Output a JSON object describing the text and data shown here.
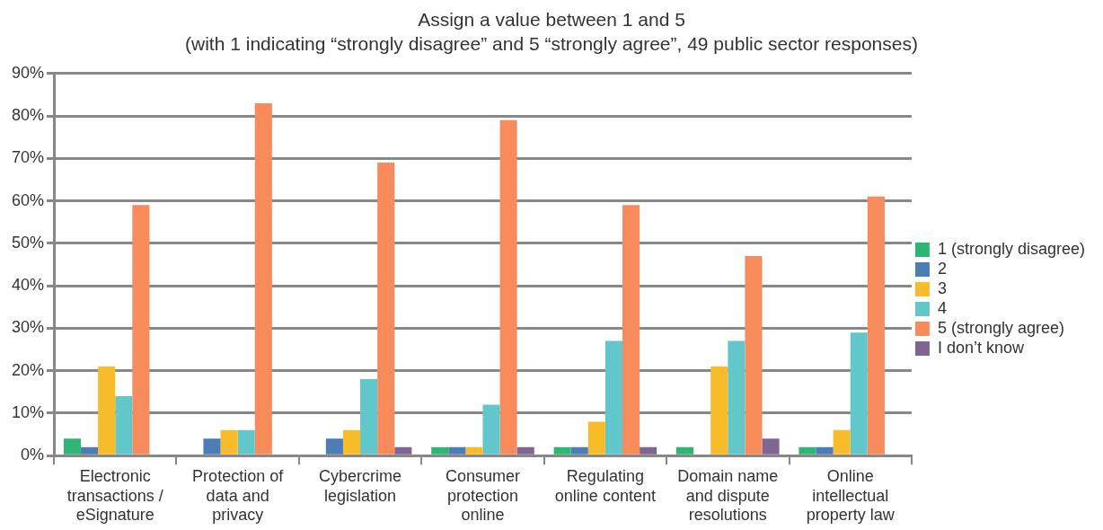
{
  "chart_data": {
    "type": "bar",
    "title": "Assign a value between 1 and 5",
    "subtitle": "(with 1 indicating “strongly disagree” and 5 “strongly agree”, 49 public sector responses)",
    "categories": [
      "Electronic transactions / eSignature",
      "Protection of data and privacy",
      "Cybercrime legislation",
      "Consumer protection online",
      "Regulating online content",
      "Domain name and dispute resolutions",
      "Online intellectual property law"
    ],
    "series": [
      {
        "name": "1 (strongly disagree)",
        "color": "#2eb774",
        "values": [
          4,
          0,
          0,
          2,
          2,
          2,
          2
        ]
      },
      {
        "name": "2",
        "color": "#4c7db5",
        "values": [
          2,
          4,
          4,
          2,
          2,
          0,
          2
        ]
      },
      {
        "name": "3",
        "color": "#f8bc2a",
        "values": [
          21,
          6,
          6,
          2,
          8,
          21,
          6
        ]
      },
      {
        "name": "4",
        "color": "#62c7ca",
        "values": [
          14,
          6,
          18,
          12,
          27,
          27,
          29
        ]
      },
      {
        "name": "5 (strongly agree)",
        "color": "#f78b5c",
        "values": [
          59,
          83,
          69,
          79,
          59,
          47,
          61
        ]
      },
      {
        "name": "I don’t know",
        "color": "#7f6592",
        "values": [
          0,
          0,
          2,
          2,
          2,
          4,
          0
        ]
      }
    ],
    "ylim": [
      0,
      90
    ],
    "yticks": [
      {
        "value": 0,
        "label": "0%"
      },
      {
        "value": 10,
        "label": "10%"
      },
      {
        "value": 20,
        "label": "20%"
      },
      {
        "value": 30,
        "label": "30%"
      },
      {
        "value": 40,
        "label": "40%"
      },
      {
        "value": 50,
        "label": "50%"
      },
      {
        "value": 60,
        "label": "60%"
      },
      {
        "value": 70,
        "label": "70%"
      },
      {
        "value": 80,
        "label": "80%"
      },
      {
        "value": 90,
        "label": "90%"
      }
    ],
    "grid": "y",
    "legend": "right"
  }
}
